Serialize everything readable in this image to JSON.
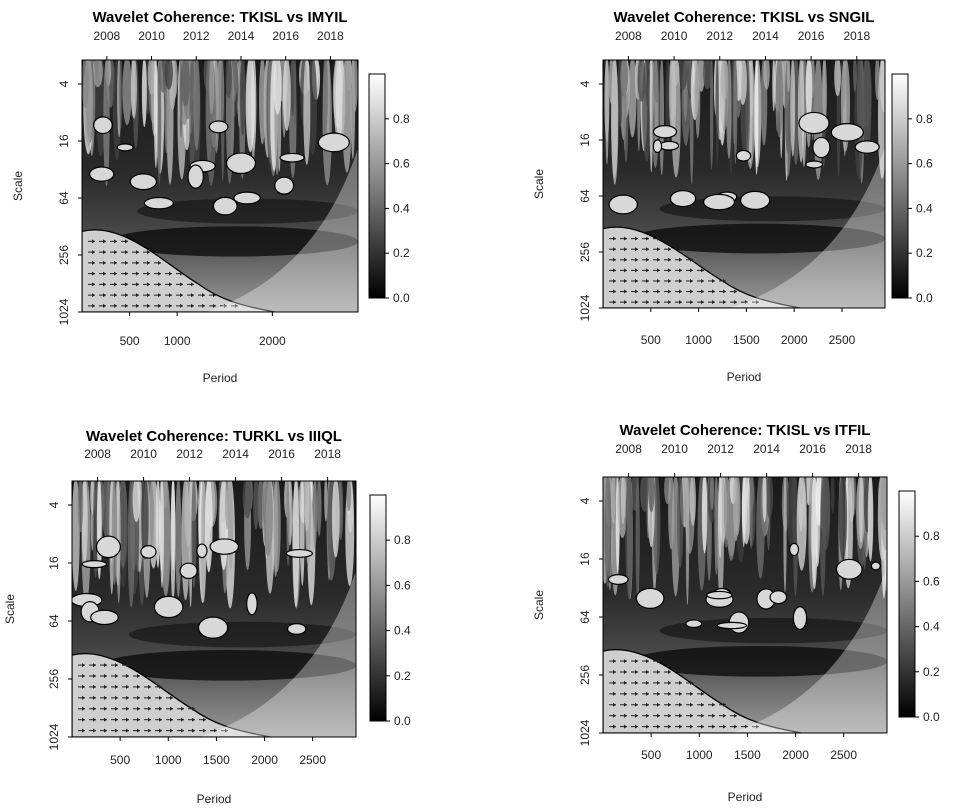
{
  "chart_data": [
    {
      "type": "heatmap",
      "title": "Wavelet Coherence: TKISL vs IMYIL",
      "xlabel": "Period",
      "ylabel": "Scale",
      "x_ticks": [
        500,
        1000,
        2000
      ],
      "xlim": [
        0,
        2900
      ],
      "top_ticks": [
        "2008",
        "2010",
        "2012",
        "2014",
        "2016",
        "2018"
      ],
      "y_ticks": [
        "4",
        "16",
        "64",
        "256",
        "1024"
      ],
      "colorbar_ticks": [
        "0.0",
        "0.2",
        "0.4",
        "0.6",
        "0.8"
      ],
      "colorbar_range": [
        0,
        1
      ],
      "seed": 11
    },
    {
      "type": "heatmap",
      "title": "Wavelet Coherence: TKISL vs SNGIL",
      "xlabel": "Period",
      "ylabel": "Scale",
      "x_ticks": [
        500,
        1000,
        1500,
        2000,
        2500
      ],
      "xlim": [
        0,
        2950
      ],
      "top_ticks": [
        "2008",
        "2010",
        "2012",
        "2014",
        "2016",
        "2018"
      ],
      "y_ticks": [
        "4",
        "16",
        "64",
        "256",
        "1024"
      ],
      "colorbar_ticks": [
        "0.0",
        "0.2",
        "0.4",
        "0.6",
        "0.8"
      ],
      "colorbar_range": [
        0,
        1
      ],
      "seed": 23
    },
    {
      "type": "heatmap",
      "title": "Wavelet Coherence: TURKL vs IIIQL",
      "xlabel": "Period",
      "ylabel": "Scale",
      "x_ticks": [
        500,
        1000,
        1500,
        2000,
        2500
      ],
      "xlim": [
        0,
        2950
      ],
      "top_ticks": [
        "2008",
        "2010",
        "2012",
        "2014",
        "2016",
        "2018"
      ],
      "y_ticks": [
        "4",
        "16",
        "64",
        "256",
        "1024"
      ],
      "colorbar_ticks": [
        "0.0",
        "0.2",
        "0.4",
        "0.6",
        "0.8"
      ],
      "colorbar_range": [
        0,
        1
      ],
      "seed": 37
    },
    {
      "type": "heatmap",
      "title": "Wavelet Coherence: TKISL vs ITFIL",
      "xlabel": "Period",
      "ylabel": "Scale",
      "x_ticks": [
        500,
        1000,
        1500,
        2000,
        2500
      ],
      "xlim": [
        0,
        2950
      ],
      "top_ticks": [
        "2008",
        "2010",
        "2012",
        "2014",
        "2016",
        "2018"
      ],
      "y_ticks": [
        "4",
        "16",
        "64",
        "256",
        "1024"
      ],
      "colorbar_ticks": [
        "0.0",
        "0.2",
        "0.4",
        "0.6",
        "0.8"
      ],
      "colorbar_range": [
        0,
        1
      ],
      "seed": 51
    }
  ]
}
